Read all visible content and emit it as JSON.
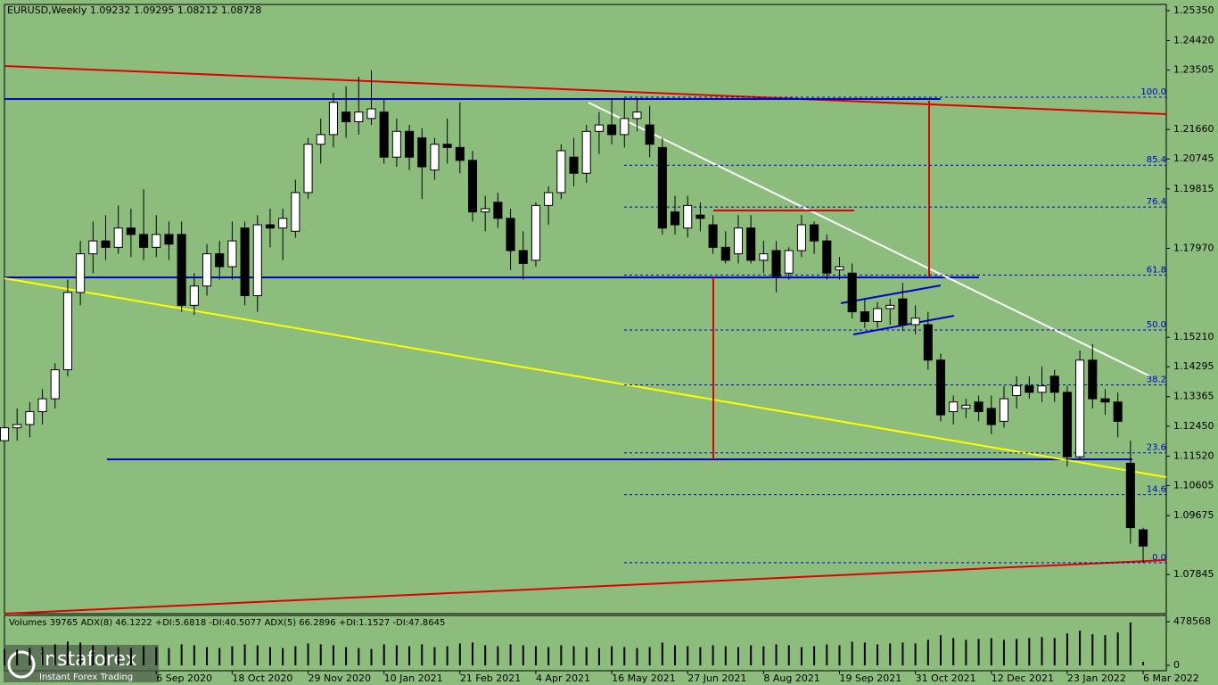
{
  "chart_data": {
    "type": "candlestick",
    "symbol": "EURUSD,Weekly",
    "candles": [
      [
        1.12,
        1.128,
        1.116,
        1.124
      ],
      [
        1.124,
        1.13,
        1.12,
        1.125
      ],
      [
        1.125,
        1.132,
        1.121,
        1.129
      ],
      [
        1.129,
        1.136,
        1.125,
        1.133
      ],
      [
        1.133,
        1.144,
        1.13,
        1.142
      ],
      [
        1.142,
        1.17,
        1.14,
        1.166
      ],
      [
        1.166,
        1.182,
        1.162,
        1.178
      ],
      [
        1.178,
        1.188,
        1.172,
        1.182
      ],
      [
        1.182,
        1.19,
        1.176,
        1.18
      ],
      [
        1.18,
        1.193,
        1.178,
        1.186
      ],
      [
        1.186,
        1.192,
        1.177,
        1.184
      ],
      [
        1.184,
        1.198,
        1.176,
        1.18
      ],
      [
        1.18,
        1.19,
        1.177,
        1.184
      ],
      [
        1.184,
        1.188,
        1.176,
        1.181
      ],
      [
        1.184,
        1.188,
        1.16,
        1.162
      ],
      [
        1.162,
        1.172,
        1.159,
        1.168
      ],
      [
        1.168,
        1.181,
        1.165,
        1.178
      ],
      [
        1.178,
        1.182,
        1.17,
        1.174
      ],
      [
        1.174,
        1.188,
        1.17,
        1.182
      ],
      [
        1.186,
        1.188,
        1.162,
        1.165
      ],
      [
        1.165,
        1.19,
        1.16,
        1.187
      ],
      [
        1.187,
        1.192,
        1.18,
        1.186
      ],
      [
        1.186,
        1.192,
        1.176,
        1.189
      ],
      [
        1.185,
        1.201,
        1.183,
        1.197
      ],
      [
        1.197,
        1.214,
        1.195,
        1.212
      ],
      [
        1.212,
        1.22,
        1.206,
        1.215
      ],
      [
        1.215,
        1.228,
        1.211,
        1.225
      ],
      [
        1.222,
        1.23,
        1.214,
        1.219
      ],
      [
        1.219,
        1.233,
        1.215,
        1.222
      ],
      [
        1.22,
        1.235,
        1.218,
        1.223
      ],
      [
        1.222,
        1.226,
        1.206,
        1.208
      ],
      [
        1.208,
        1.22,
        1.205,
        1.216
      ],
      [
        1.216,
        1.218,
        1.204,
        1.208
      ],
      [
        1.214,
        1.217,
        1.195,
        1.205
      ],
      [
        1.204,
        1.214,
        1.201,
        1.212
      ],
      [
        1.212,
        1.22,
        1.206,
        1.211
      ],
      [
        1.211,
        1.225,
        1.203,
        1.207
      ],
      [
        1.207,
        1.21,
        1.188,
        1.191
      ],
      [
        1.191,
        1.196,
        1.185,
        1.192
      ],
      [
        1.194,
        1.197,
        1.186,
        1.189
      ],
      [
        1.189,
        1.192,
        1.173,
        1.179
      ],
      [
        1.179,
        1.185,
        1.17,
        1.175
      ],
      [
        1.176,
        1.194,
        1.174,
        1.193
      ],
      [
        1.193,
        1.199,
        1.187,
        1.197
      ],
      [
        1.197,
        1.212,
        1.195,
        1.21
      ],
      [
        1.208,
        1.214,
        1.199,
        1.203
      ],
      [
        1.203,
        1.218,
        1.2,
        1.216
      ],
      [
        1.216,
        1.222,
        1.209,
        1.218
      ],
      [
        1.218,
        1.226,
        1.212,
        1.215
      ],
      [
        1.215,
        1.226,
        1.211,
        1.22
      ],
      [
        1.22,
        1.226,
        1.216,
        1.222
      ],
      [
        1.218,
        1.224,
        1.208,
        1.212
      ],
      [
        1.211,
        1.214,
        1.184,
        1.186
      ],
      [
        1.191,
        1.196,
        1.184,
        1.187
      ],
      [
        1.186,
        1.196,
        1.183,
        1.193
      ],
      [
        1.19,
        1.194,
        1.185,
        1.189
      ],
      [
        1.187,
        1.19,
        1.178,
        1.18
      ],
      [
        1.18,
        1.185,
        1.175,
        1.176
      ],
      [
        1.178,
        1.19,
        1.175,
        1.186
      ],
      [
        1.186,
        1.19,
        1.175,
        1.176
      ],
      [
        1.176,
        1.182,
        1.172,
        1.178
      ],
      [
        1.179,
        1.182,
        1.166,
        1.171
      ],
      [
        1.172,
        1.18,
        1.17,
        1.179
      ],
      [
        1.179,
        1.19,
        1.177,
        1.187
      ],
      [
        1.187,
        1.188,
        1.178,
        1.182
      ],
      [
        1.182,
        1.184,
        1.17,
        1.172
      ],
      [
        1.173,
        1.177,
        1.17,
        1.174
      ],
      [
        1.172,
        1.175,
        1.158,
        1.16
      ],
      [
        1.16,
        1.164,
        1.155,
        1.157
      ],
      [
        1.157,
        1.163,
        1.155,
        1.161
      ],
      [
        1.161,
        1.164,
        1.156,
        1.162
      ],
      [
        1.164,
        1.169,
        1.154,
        1.156
      ],
      [
        1.156,
        1.162,
        1.153,
        1.158
      ],
      [
        1.156,
        1.16,
        1.142,
        1.145
      ],
      [
        1.145,
        1.147,
        1.126,
        1.128
      ],
      [
        1.129,
        1.134,
        1.125,
        1.132
      ],
      [
        1.13,
        1.133,
        1.127,
        1.131
      ],
      [
        1.132,
        1.134,
        1.126,
        1.129
      ],
      [
        1.13,
        1.134,
        1.122,
        1.125
      ],
      [
        1.126,
        1.137,
        1.124,
        1.133
      ],
      [
        1.134,
        1.14,
        1.13,
        1.137
      ],
      [
        1.137,
        1.14,
        1.133,
        1.135
      ],
      [
        1.135,
        1.143,
        1.132,
        1.137
      ],
      [
        1.14,
        1.142,
        1.132,
        1.135
      ],
      [
        1.135,
        1.137,
        1.112,
        1.115
      ],
      [
        1.115,
        1.148,
        1.114,
        1.145
      ],
      [
        1.145,
        1.15,
        1.13,
        1.133
      ],
      [
        1.133,
        1.136,
        1.128,
        1.132
      ],
      [
        1.132,
        1.135,
        1.121,
        1.126
      ],
      [
        1.113,
        1.12,
        1.088,
        1.093
      ],
      [
        1.09232,
        1.09295,
        1.08212,
        1.08728
      ]
    ],
    "xlim": [
      0,
      91.83
    ],
    "xticks": [
      {
        "value": 12,
        "label": "6 Sep 2020"
      },
      {
        "value": 18,
        "label": "18 Oct 2020"
      },
      {
        "value": 24,
        "label": "29 Nov 2020"
      },
      {
        "value": 30,
        "label": "10 Jan 2021"
      },
      {
        "value": 36,
        "label": "21 Feb 2021"
      },
      {
        "value": 42,
        "label": "4 Apr 2021"
      },
      {
        "value": 48,
        "label": "16 May 2021"
      },
      {
        "value": 54,
        "label": "27 Jun 2021"
      },
      {
        "value": 60,
        "label": "8 Aug 2021"
      },
      {
        "value": 66,
        "label": "19 Sep 2021"
      },
      {
        "value": 72,
        "label": "31 Oct 2021"
      },
      {
        "value": 78,
        "label": "12 Dec 2021"
      },
      {
        "value": 84,
        "label": "23 Jan 2022"
      },
      {
        "value": 90,
        "label": "6 Mar 2022"
      }
    ],
    "ylim": [
      1.0663,
      1.2554
    ],
    "yticks": [
      {
        "value": 1.2535,
        "label": "1.25350"
      },
      {
        "value": 1.2442,
        "label": "1.24420"
      },
      {
        "value": 1.23505,
        "label": "1.23505"
      },
      {
        "value": 1.2166,
        "label": "1.21660"
      },
      {
        "value": 1.20745,
        "label": "1.20745"
      },
      {
        "value": 1.19815,
        "label": "1.19815"
      },
      {
        "value": 1.1797,
        "label": "1.17970"
      },
      {
        "value": 1.1521,
        "label": "1.15210"
      },
      {
        "value": 1.14295,
        "label": "1.14295"
      },
      {
        "value": 1.13365,
        "label": "1.13365"
      },
      {
        "value": 1.1245,
        "label": "1.12450"
      },
      {
        "value": 1.1152,
        "label": "1.11520"
      },
      {
        "value": 1.10605,
        "label": "1.10605"
      },
      {
        "value": 1.09675,
        "label": "1.09675"
      },
      {
        "value": 1.07845,
        "label": "1.07845"
      }
    ],
    "fibonacci": {
      "high": 1.2266,
      "low": 1.08212,
      "levels": [
        {
          "value": 100,
          "label": "100.0"
        },
        {
          "value": 85.4,
          "label": "85.4"
        },
        {
          "value": 76.4,
          "label": "76.4"
        },
        {
          "value": 61.8,
          "label": "61.8"
        },
        {
          "value": 50,
          "label": "50.0"
        },
        {
          "value": 38.2,
          "label": "38.2"
        },
        {
          "value": 23.6,
          "label": "23.6"
        },
        {
          "value": 14.6,
          "label": "14.6"
        },
        {
          "value": 0,
          "label": "0.0"
        }
      ]
    },
    "volume_panel": {
      "label": "Volumes 39765  ADX(8) 46.1222 +DI:5.6818 -DI:40.5077  ADX(5) 66.2896 +DI:1.1527 -DI:47.8645",
      "ylim": [
        0,
        478568
      ],
      "yticks": [
        0,
        478568
      ],
      "values": [
        180000,
        170000,
        190000,
        200000,
        230000,
        260000,
        250000,
        220000,
        210000,
        200000,
        190000,
        210000,
        200000,
        190000,
        230000,
        220000,
        200000,
        190000,
        210000,
        230000,
        220000,
        200000,
        190000,
        210000,
        240000,
        230000,
        220000,
        200000,
        190000,
        180000,
        230000,
        220000,
        210000,
        230000,
        200000,
        210000,
        240000,
        250000,
        220000,
        210000,
        230000,
        220000,
        210000,
        200000,
        220000,
        210000,
        200000,
        190000,
        210000,
        200000,
        190000,
        200000,
        250000,
        220000,
        210000,
        200000,
        220000,
        210000,
        200000,
        220000,
        210000,
        230000,
        220000,
        200000,
        210000,
        230000,
        220000,
        260000,
        250000,
        230000,
        240000,
        250000,
        240000,
        280000,
        330000,
        300000,
        280000,
        290000,
        300000,
        280000,
        290000,
        300000,
        310000,
        300000,
        350000,
        380000,
        340000,
        330000,
        360000,
        470000,
        39765
      ]
    }
  },
  "logo": {
    "brand": "instaforex",
    "tagline": "Instant Forex Trading"
  }
}
